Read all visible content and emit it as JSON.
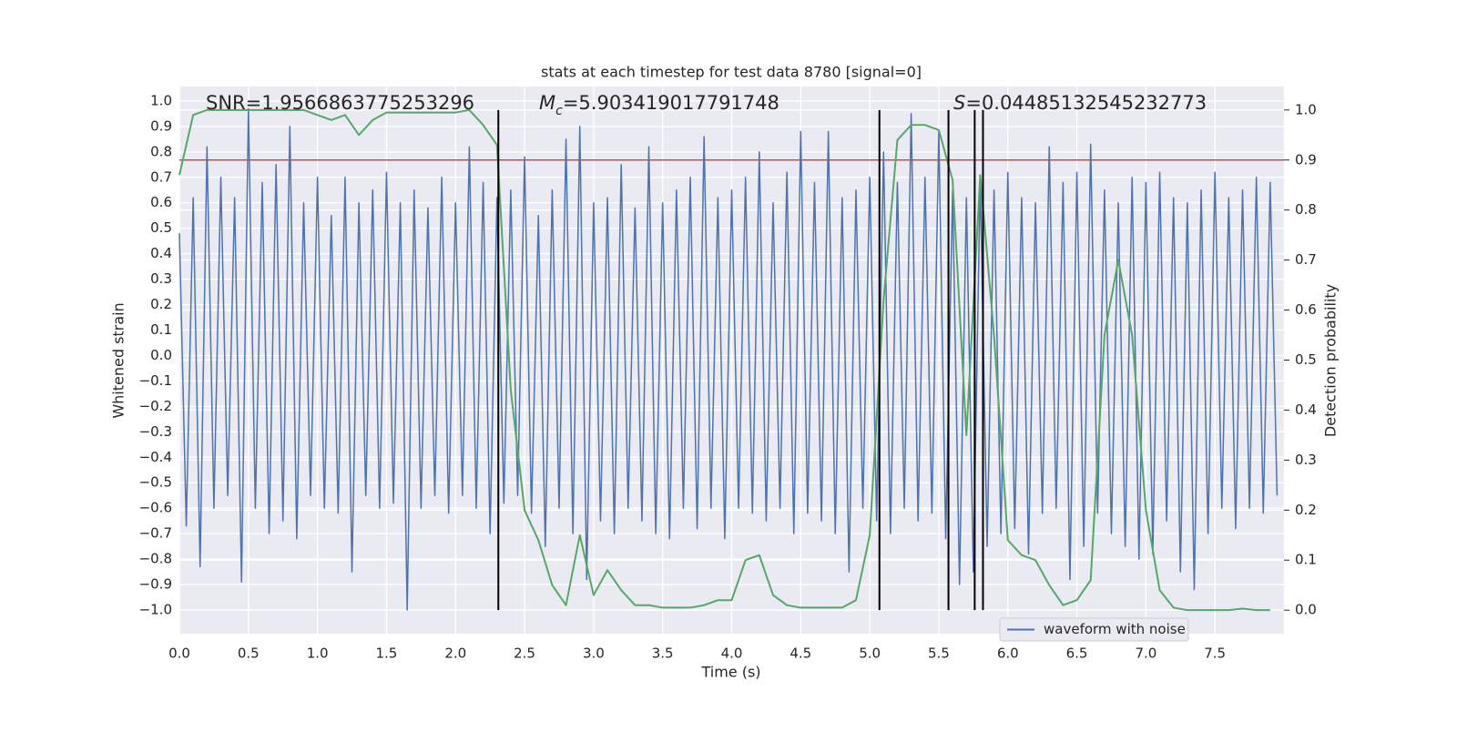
{
  "chart_data": {
    "type": "line",
    "title": "stats at each timestep for test data 8780 [signal=0]",
    "xlabel": "Time (s)",
    "ylabel": "Whitened strain",
    "y2label": "Detection probability",
    "annotations": [
      {
        "text": "SNR=1.9566863775253296"
      },
      {
        "label": "M",
        "sub": "c",
        "text": "=5.903419017791748"
      },
      {
        "label": "S",
        "text": "=0.04485132545232773"
      }
    ],
    "xlim": [
      0,
      8
    ],
    "ylim": [
      -1.093,
      1.057
    ],
    "y2lim": [
      -0.047,
      1.047
    ],
    "xticks": [
      {
        "value": 0,
        "label": "0.0"
      },
      {
        "value": 0.5,
        "label": "0.5"
      },
      {
        "value": 1,
        "label": "1.0"
      },
      {
        "value": 1.5,
        "label": "1.5"
      },
      {
        "value": 2,
        "label": "2.0"
      },
      {
        "value": 2.5,
        "label": "2.5"
      },
      {
        "value": 3,
        "label": "3.0"
      },
      {
        "value": 3.5,
        "label": "3.5"
      },
      {
        "value": 4,
        "label": "4.0"
      },
      {
        "value": 4.5,
        "label": "4.5"
      },
      {
        "value": 5,
        "label": "5.0"
      },
      {
        "value": 5.5,
        "label": "5.5"
      },
      {
        "value": 6,
        "label": "6.0"
      },
      {
        "value": 6.5,
        "label": "6.5"
      },
      {
        "value": 7,
        "label": "7.0"
      },
      {
        "value": 7.5,
        "label": "7.5"
      }
    ],
    "yticks": [
      {
        "value": 1,
        "label": "1.0"
      },
      {
        "value": 0.9,
        "label": "0.9"
      },
      {
        "value": 0.8,
        "label": "0.8"
      },
      {
        "value": 0.7,
        "label": "0.7"
      },
      {
        "value": 0.6,
        "label": "0.6"
      },
      {
        "value": 0.5,
        "label": "0.5"
      },
      {
        "value": 0.4,
        "label": "0.4"
      },
      {
        "value": 0.3,
        "label": "0.3"
      },
      {
        "value": 0.2,
        "label": "0.2"
      },
      {
        "value": 0.1,
        "label": "0.1"
      },
      {
        "value": 0,
        "label": "0.0"
      },
      {
        "value": -0.1,
        "label": "−0.1"
      },
      {
        "value": -0.2,
        "label": "−0.2"
      },
      {
        "value": -0.3,
        "label": "−0.3"
      },
      {
        "value": -0.4,
        "label": "−0.4"
      },
      {
        "value": -0.5,
        "label": "−0.5"
      },
      {
        "value": -0.6,
        "label": "−0.6"
      },
      {
        "value": -0.7,
        "label": "−0.7"
      },
      {
        "value": -0.8,
        "label": "−0.8"
      },
      {
        "value": -0.9,
        "label": "−0.9"
      },
      {
        "value": -1,
        "label": "−1.0"
      }
    ],
    "y2ticks": [
      {
        "value": 1,
        "label": "1.0"
      },
      {
        "value": 0.9,
        "label": "0.9"
      },
      {
        "value": 0.8,
        "label": "0.8"
      },
      {
        "value": 0.7,
        "label": "0.7"
      },
      {
        "value": 0.6,
        "label": "0.6"
      },
      {
        "value": 0.5,
        "label": "0.5"
      },
      {
        "value": 0.4,
        "label": "0.4"
      },
      {
        "value": 0.3,
        "label": "0.3"
      },
      {
        "value": 0.2,
        "label": "0.2"
      },
      {
        "value": 0.1,
        "label": "0.1"
      },
      {
        "value": 0,
        "label": "0.0"
      }
    ],
    "grid": true,
    "legend": "lower right",
    "threshold": 0.9,
    "threshold_color": "#c44e52",
    "vlines": [
      2.31,
      5.07,
      5.57,
      5.76,
      5.82
    ],
    "vline_color": "#000000",
    "series": [
      {
        "name": "waveform with noise",
        "color": "#4c72b0",
        "axis": "y",
        "x": [
          0,
          0.05,
          0.1,
          0.15,
          0.2,
          0.25,
          0.3,
          0.35,
          0.4,
          0.45,
          0.5,
          0.55,
          0.6,
          0.65,
          0.7,
          0.75,
          0.8,
          0.85,
          0.9,
          0.95,
          1,
          1.05,
          1.1,
          1.15,
          1.2,
          1.25,
          1.3,
          1.35,
          1.4,
          1.45,
          1.5,
          1.55,
          1.6,
          1.65,
          1.7,
          1.75,
          1.8,
          1.85,
          1.9,
          1.95,
          2,
          2.05,
          2.1,
          2.15,
          2.2,
          2.25,
          2.3,
          2.35,
          2.4,
          2.45,
          2.5,
          2.55,
          2.6,
          2.65,
          2.7,
          2.75,
          2.8,
          2.85,
          2.9,
          2.95,
          3,
          3.05,
          3.1,
          3.15,
          3.2,
          3.25,
          3.3,
          3.35,
          3.4,
          3.45,
          3.5,
          3.55,
          3.6,
          3.65,
          3.7,
          3.75,
          3.8,
          3.85,
          3.9,
          3.95,
          4,
          4.05,
          4.1,
          4.15,
          4.2,
          4.25,
          4.3,
          4.35,
          4.4,
          4.45,
          4.5,
          4.55,
          4.6,
          4.65,
          4.7,
          4.75,
          4.8,
          4.85,
          4.9,
          4.95,
          5,
          5.05,
          5.1,
          5.15,
          5.2,
          5.25,
          5.3,
          5.35,
          5.4,
          5.45,
          5.5,
          5.55,
          5.6,
          5.65,
          5.7,
          5.75,
          5.8,
          5.85,
          5.9,
          5.95,
          6,
          6.05,
          6.1,
          6.15,
          6.2,
          6.25,
          6.3,
          6.35,
          6.4,
          6.45,
          6.5,
          6.55,
          6.6,
          6.65,
          6.7,
          6.75,
          6.8,
          6.85,
          6.9,
          6.95,
          7,
          7.05,
          7.1,
          7.15,
          7.2,
          7.25,
          7.3,
          7.35,
          7.4,
          7.45,
          7.5,
          7.55,
          7.6,
          7.65,
          7.7,
          7.75,
          7.8,
          7.85,
          7.9,
          7.95
        ],
        "values": [
          0.48,
          -0.67,
          0.62,
          -0.83,
          0.82,
          -0.6,
          0.7,
          -0.55,
          0.62,
          -0.89,
          0.97,
          -0.6,
          0.68,
          -0.7,
          0.75,
          -0.65,
          0.9,
          -0.72,
          0.6,
          -0.55,
          0.7,
          -0.6,
          0.55,
          -0.62,
          0.7,
          -0.85,
          0.6,
          -0.55,
          0.65,
          -0.6,
          0.72,
          -0.58,
          0.6,
          -1.0,
          0.65,
          -0.6,
          0.58,
          -0.55,
          0.7,
          -0.62,
          0.6,
          -0.55,
          0.82,
          -0.6,
          0.68,
          -0.7,
          0.62,
          -0.58,
          0.65,
          -0.55,
          0.78,
          -0.62,
          0.55,
          -0.75,
          0.65,
          -0.6,
          0.85,
          -0.7,
          0.9,
          -0.88,
          0.6,
          -0.65,
          0.62,
          -0.7,
          0.75,
          -0.6,
          0.58,
          -0.65,
          0.82,
          -0.7,
          0.6,
          -0.72,
          0.65,
          -0.6,
          0.7,
          -0.68,
          0.86,
          -0.6,
          0.62,
          -0.72,
          0.65,
          -0.6,
          0.7,
          -0.62,
          0.8,
          -0.65,
          0.6,
          -0.6,
          0.72,
          -0.7,
          0.88,
          -0.62,
          0.68,
          -0.65,
          0.88,
          -0.7,
          0.62,
          -0.85,
          0.65,
          -0.6,
          0.7,
          -0.65,
          0.8,
          -0.7,
          0.68,
          -0.6,
          0.95,
          -0.65,
          0.7,
          -0.62,
          0.88,
          -0.72,
          0.65,
          -0.9,
          0.62,
          -0.85,
          0.7,
          -0.75,
          0.65,
          -0.7,
          0.72,
          -0.68,
          0.62,
          -0.78,
          0.6,
          -0.62,
          0.82,
          -0.6,
          0.68,
          -0.88,
          0.72,
          -0.75,
          0.83,
          -0.62,
          0.65,
          -0.7,
          0.6,
          -0.75,
          0.7,
          -0.8,
          0.68,
          -0.78,
          0.72,
          -0.65,
          0.62,
          -0.85,
          0.6,
          -0.92,
          0.65,
          -0.7,
          0.72,
          -0.6,
          0.62,
          -0.68,
          0.65,
          -0.6,
          0.7,
          -0.62,
          0.68,
          -0.55
        ]
      },
      {
        "color": "#55a868",
        "axis": "y2",
        "x": [
          0,
          0.1,
          0.2,
          0.3,
          0.4,
          0.5,
          0.6,
          0.7,
          0.8,
          0.9,
          1,
          1.1,
          1.2,
          1.3,
          1.4,
          1.5,
          1.6,
          1.7,
          1.8,
          1.9,
          2,
          2.1,
          2.2,
          2.3,
          2.4,
          2.5,
          2.6,
          2.7,
          2.8,
          2.9,
          3,
          3.1,
          3.2,
          3.3,
          3.4,
          3.5,
          3.6,
          3.7,
          3.8,
          3.9,
          4,
          4.1,
          4.2,
          4.3,
          4.4,
          4.5,
          4.6,
          4.7,
          4.8,
          4.9,
          5,
          5.1,
          5.2,
          5.3,
          5.4,
          5.5,
          5.6,
          5.7,
          5.8,
          5.9,
          6,
          6.1,
          6.2,
          6.3,
          6.4,
          6.5,
          6.6,
          6.7,
          6.8,
          6.9,
          7,
          7.1,
          7.2,
          7.3,
          7.4,
          7.5,
          7.6,
          7.7,
          7.8,
          7.9
        ],
        "values": [
          0.87,
          0.99,
          1.0,
          1.0,
          1.0,
          1.0,
          1.0,
          1.0,
          1.0,
          1.0,
          0.99,
          0.98,
          0.99,
          0.95,
          0.98,
          0.995,
          0.995,
          0.995,
          0.995,
          0.995,
          0.995,
          1.0,
          0.97,
          0.93,
          0.44,
          0.2,
          0.14,
          0.05,
          0.01,
          0.15,
          0.03,
          0.08,
          0.04,
          0.01,
          0.01,
          0.005,
          0.005,
          0.005,
          0.01,
          0.02,
          0.02,
          0.1,
          0.11,
          0.03,
          0.01,
          0.005,
          0.005,
          0.005,
          0.005,
          0.02,
          0.15,
          0.62,
          0.94,
          0.97,
          0.97,
          0.96,
          0.86,
          0.35,
          0.87,
          0.55,
          0.14,
          0.11,
          0.1,
          0.05,
          0.01,
          0.02,
          0.06,
          0.55,
          0.7,
          0.55,
          0.2,
          0.04,
          0.005,
          0.0,
          0.0,
          0.0,
          0.0,
          0.003,
          0.0,
          0.0
        ]
      }
    ]
  }
}
